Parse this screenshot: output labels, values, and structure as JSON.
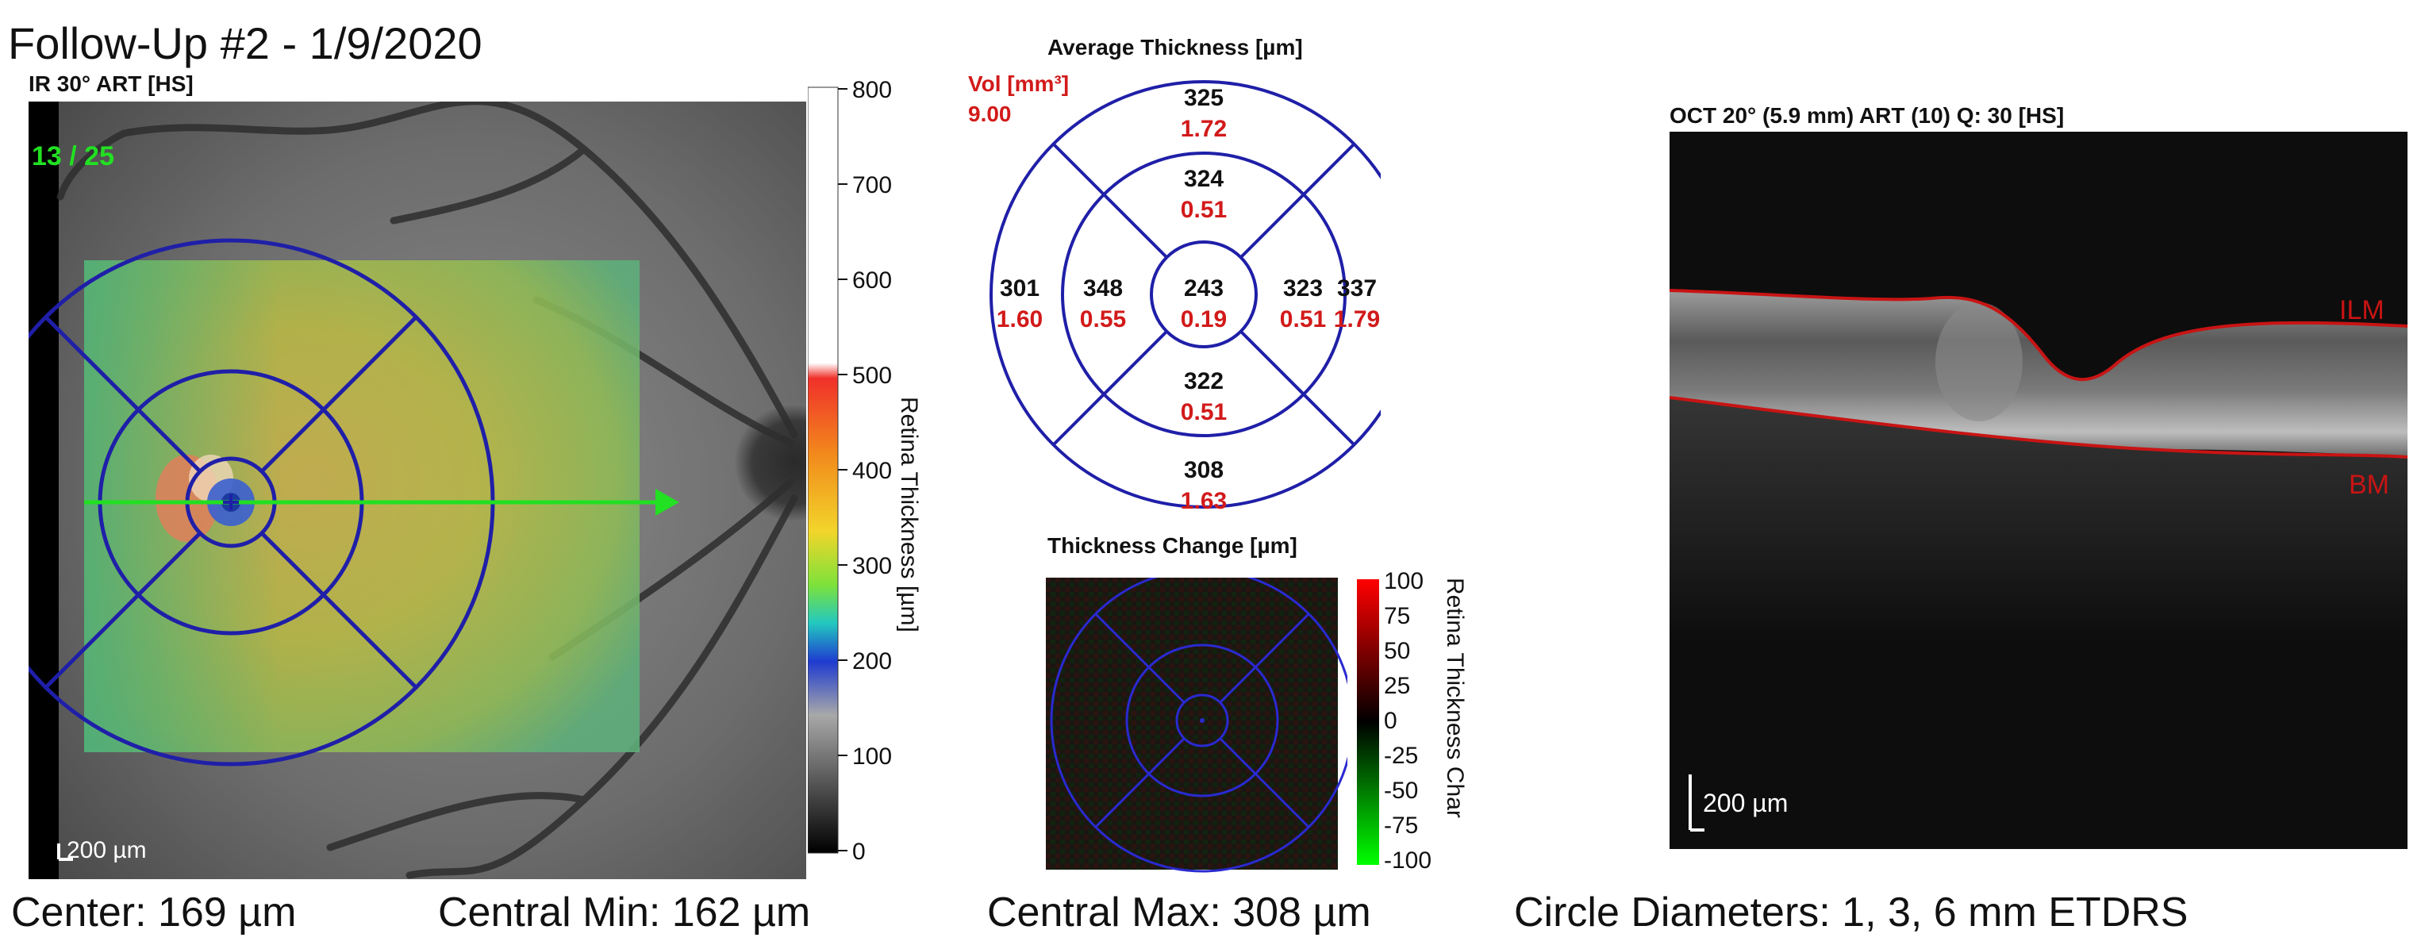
{
  "header": {
    "title": "Follow-Up #2 - 1/9/2020"
  },
  "ir_panel": {
    "label": "IR 30° ART [HS]",
    "frame_counter": "13 / 25",
    "scale_bar": "200 µm"
  },
  "colorbar": {
    "title": "Retina Thickness [µm]",
    "ticks": [
      "800",
      "700",
      "600",
      "500",
      "400",
      "300",
      "200",
      "100",
      "0"
    ]
  },
  "avg_thickness": {
    "title": "Average Thickness [µm]",
    "vol_label": "Vol [mm³]",
    "vol_value": "9.00",
    "sectors": {
      "outer_top": {
        "thickness": "325",
        "volume": "1.72"
      },
      "inner_top": {
        "thickness": "324",
        "volume": "0.51"
      },
      "outer_left": {
        "thickness": "301",
        "volume": "1.60"
      },
      "inner_left": {
        "thickness": "348",
        "volume": "0.55"
      },
      "center": {
        "thickness": "243",
        "volume": "0.19"
      },
      "inner_right": {
        "thickness": "323",
        "volume": "0.51"
      },
      "outer_right": {
        "thickness": "337",
        "volume": "1.79"
      },
      "inner_bottom": {
        "thickness": "322",
        "volume": "0.51"
      },
      "outer_bottom": {
        "thickness": "308",
        "volume": "1.63"
      }
    }
  },
  "thickness_change": {
    "title": "Thickness Change [µm]",
    "colorbar_title": "Retina Thickness Char",
    "ticks": [
      "100",
      "75",
      "50",
      "25",
      "0",
      "-25",
      "-50",
      "-75",
      "-100"
    ]
  },
  "oct_panel": {
    "label": "OCT 20° (5.9 mm) ART (10) Q: 30 [HS]",
    "ilm_label": "ILM",
    "bm_label": "BM",
    "scale_bar": "200 µm"
  },
  "footer": {
    "center": "Center: 169 µm",
    "central_min": "Central Min: 162 µm",
    "central_max": "Central Max: 308 µm",
    "circle_diameters": "Circle Diameters:  1, 3, 6 mm ETDRS"
  },
  "colors": {
    "ring_blue": "#1f1fa8",
    "crosshair_green": "#22e022",
    "volume_red": "#d21a1a",
    "layer_red": "#c81414"
  }
}
